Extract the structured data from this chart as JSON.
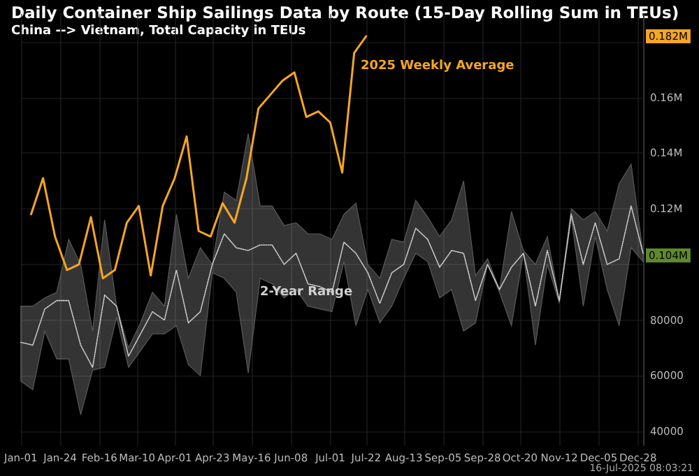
{
  "chart_data": {
    "type": "line",
    "title": "Daily Container Ship Sailings Data by Route (15-Day Rolling Sum in TEUs)",
    "subtitle": "China --> Vietnam, Total Capacity in TEUs",
    "xlim": [
      "--01-01",
      "--12-31"
    ],
    "xticks": [
      {
        "value": "--01-01",
        "label": "Jan-01"
      },
      {
        "value": "--01-24",
        "label": "Jan-24"
      },
      {
        "value": "--02-16",
        "label": "Feb-16"
      },
      {
        "value": "--03-10",
        "label": "Mar-10"
      },
      {
        "value": "--04-01",
        "label": "Apr-01"
      },
      {
        "value": "--04-23",
        "label": "Apr-23"
      },
      {
        "value": "--05-16",
        "label": "May-16"
      },
      {
        "value": "--06-08",
        "label": "Jun-08"
      },
      {
        "value": "--07-01",
        "label": "Jul-01"
      },
      {
        "value": "--07-22",
        "label": "Jul-22"
      },
      {
        "value": "--08-13",
        "label": "Aug-13"
      },
      {
        "value": "--09-05",
        "label": "Sep-05"
      },
      {
        "value": "--09-28",
        "label": "Sep-28"
      },
      {
        "value": "--10-20",
        "label": "Oct-20"
      },
      {
        "value": "--11-12",
        "label": "Nov-12"
      },
      {
        "value": "--12-05",
        "label": "Dec-05"
      },
      {
        "value": "--12-28",
        "label": "Dec-28"
      }
    ],
    "ylim": [
      35000,
      190000
    ],
    "yticks": [
      40000,
      60000,
      80000,
      {
        "value": 100000,
        "label": null
      },
      {
        "value": 120000,
        "label": "0.12M"
      },
      {
        "value": 140000,
        "label": "0.14M"
      },
      {
        "value": 160000,
        "label": "0.16M"
      },
      {
        "value": 180000,
        "label": null
      }
    ],
    "grid": true,
    "legend": false,
    "marker": "none",
    "series": [
      {
        "name": "2-Year Range",
        "color": "#d0d0d0",
        "line_style": "dotted",
        "x": [
          "--01-01",
          "--01-08",
          "--01-15",
          "--01-22",
          "--01-29",
          "--02-05",
          "--02-12",
          "--02-19",
          "--02-26",
          "--03-05",
          "--03-12",
          "--03-19",
          "--03-26",
          "--04-02",
          "--04-09",
          "--04-16",
          "--04-23",
          "--04-30",
          "--05-07",
          "--05-14",
          "--05-21",
          "--05-28",
          "--06-04",
          "--06-11",
          "--06-18",
          "--06-25",
          "--07-02",
          "--07-09",
          "--07-16",
          "--07-23",
          "--07-30",
          "--08-06",
          "--08-13",
          "--08-20",
          "--08-27",
          "--09-03",
          "--09-10",
          "--09-17",
          "--09-24",
          "--10-01",
          "--10-08",
          "--10-15",
          "--10-22",
          "--10-29",
          "--11-05",
          "--11-12",
          "--11-19",
          "--11-26",
          "--12-03",
          "--12-10",
          "--12-17",
          "--12-24",
          "--12-31"
        ],
        "values": [
          72000,
          71000,
          84000,
          87000,
          87000,
          71000,
          63000,
          89000,
          85000,
          67000,
          75000,
          83000,
          80000,
          98000,
          79000,
          83000,
          100000,
          111000,
          106000,
          105000,
          107000,
          107000,
          100000,
          104000,
          93000,
          92000,
          90000,
          108000,
          104000,
          97000,
          86000,
          97000,
          100000,
          113000,
          109000,
          99000,
          105000,
          104000,
          87000,
          100000,
          91000,
          99000,
          104000,
          85000,
          105000,
          87000,
          118000,
          100000,
          115000,
          100000,
          102000,
          121000,
          104000
        ],
        "lower": [
          58000,
          55000,
          76000,
          66000,
          66000,
          46000,
          62000,
          63000,
          81000,
          63000,
          69000,
          75000,
          75000,
          78000,
          64000,
          60000,
          97000,
          95000,
          90000,
          61000,
          95000,
          93000,
          88000,
          91000,
          85000,
          84000,
          83000,
          101000,
          78000,
          91000,
          79000,
          85000,
          95000,
          104000,
          101000,
          88000,
          91000,
          76000,
          79000,
          100000,
          90000,
          78000,
          104000,
          71000,
          100000,
          86000,
          117000,
          85000,
          110000,
          91000,
          78000,
          106000,
          101000
        ],
        "upper": [
          85000,
          85000,
          88000,
          90000,
          109000,
          100000,
          76000,
          116000,
          85000,
          70000,
          79000,
          90000,
          85000,
          118000,
          95000,
          106000,
          100000,
          126000,
          123000,
          147000,
          121000,
          121000,
          114000,
          115000,
          111000,
          111000,
          109000,
          118000,
          122000,
          100000,
          95000,
          109000,
          108000,
          123000,
          117000,
          110000,
          116000,
          130000,
          96000,
          102000,
          91000,
          119000,
          105000,
          100000,
          110000,
          87000,
          120000,
          116000,
          119000,
          112000,
          129000,
          136000,
          104000
        ]
      },
      {
        "name": "2025 Weekly Average",
        "color": "#f5a623",
        "x": [
          "--01-07",
          "--01-14",
          "--01-21",
          "--01-28",
          "--02-04",
          "--02-11",
          "--02-18",
          "--02-25",
          "--03-04",
          "--03-11",
          "--03-18",
          "--03-25",
          "--04-01",
          "--04-08",
          "--04-15",
          "--04-22",
          "--04-29",
          "--05-06",
          "--05-13",
          "--05-20",
          "--05-27",
          "--06-03",
          "--06-10",
          "--06-17",
          "--06-24",
          "--07-01",
          "--07-08",
          "--07-15",
          "--07-22"
        ],
        "values": [
          118000,
          131000,
          110000,
          98000,
          100000,
          117000,
          95000,
          98000,
          115000,
          121000,
          96000,
          121000,
          131000,
          146000,
          112000,
          110000,
          122000,
          115000,
          131000,
          156000,
          161000,
          166000,
          169000,
          153000,
          155000,
          151000,
          133000,
          176000,
          182000
        ]
      }
    ],
    "annotations": [
      "0.182M",
      "0.104M",
      "16-Jul-2025 08:03:21"
    ]
  }
}
